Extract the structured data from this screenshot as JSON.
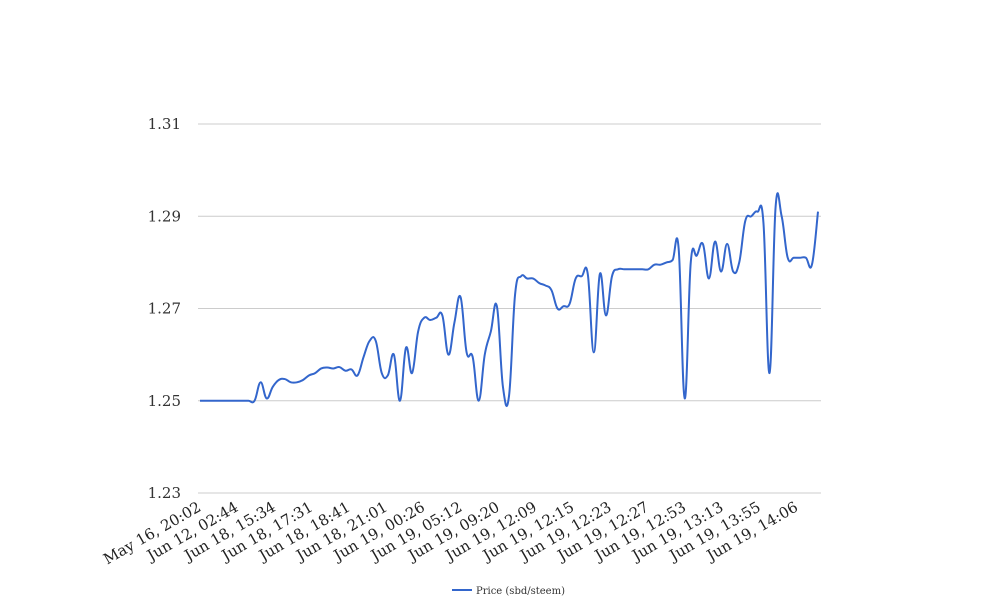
{
  "chart_data": {
    "type": "line",
    "title": "",
    "xlabel": "",
    "ylabel": "",
    "ylim": [
      1.23,
      1.31
    ],
    "yticks": [
      1.23,
      1.25,
      1.27,
      1.29,
      1.31
    ],
    "grid": "horizontal",
    "legend_position": "bottom-center",
    "x_tick_labels": [
      "May 16, 20:02",
      "Jun 12, 02:44",
      "Jun 18, 15:34",
      "Jun 18, 17:31",
      "Jun 18, 18:41",
      "Jun 18, 21:01",
      "Jun 19, 00:26",
      "Jun 19, 05:12",
      "Jun 19, 09:20",
      "Jun 19, 12:09",
      "Jun 19, 12:15",
      "Jun 19, 12:23",
      "Jun 19, 12:27",
      "Jun 19, 12:53",
      "Jun 19, 13:13",
      "Jun 19, 13:55",
      "Jun 19, 14:06"
    ],
    "series": [
      {
        "name": "Price (sbd/steem)",
        "color": "#3366cc",
        "values": [
          1.25,
          1.25,
          1.25,
          1.25,
          1.25,
          1.25,
          1.25,
          1.25,
          1.25,
          1.25,
          1.254,
          1.2505,
          1.253,
          1.2545,
          1.2547,
          1.254,
          1.254,
          1.2545,
          1.2555,
          1.256,
          1.257,
          1.2572,
          1.257,
          1.2573,
          1.2565,
          1.2568,
          1.2555,
          1.2595,
          1.263,
          1.263,
          1.256,
          1.2555,
          1.26,
          1.25,
          1.2615,
          1.256,
          1.265,
          1.268,
          1.2675,
          1.268,
          1.2685,
          1.26,
          1.267,
          1.2725,
          1.2605,
          1.2595,
          1.25,
          1.26,
          1.265,
          1.2705,
          1.253,
          1.251,
          1.273,
          1.277,
          1.2765,
          1.2765,
          1.2755,
          1.275,
          1.274,
          1.27,
          1.2705,
          1.271,
          1.2765,
          1.277,
          1.2775,
          1.2605,
          1.2775,
          1.2685,
          1.277,
          1.2785,
          1.2785,
          1.2785,
          1.2785,
          1.2785,
          1.2785,
          1.2795,
          1.2795,
          1.28,
          1.2805,
          1.283,
          1.2505,
          1.28,
          1.2815,
          1.284,
          1.2765,
          1.2845,
          1.278,
          1.284,
          1.278,
          1.28,
          1.289,
          1.29,
          1.291,
          1.2885,
          1.256,
          1.292,
          1.29,
          1.281,
          1.281,
          1.281,
          1.281,
          1.2795,
          1.291
        ]
      }
    ]
  }
}
